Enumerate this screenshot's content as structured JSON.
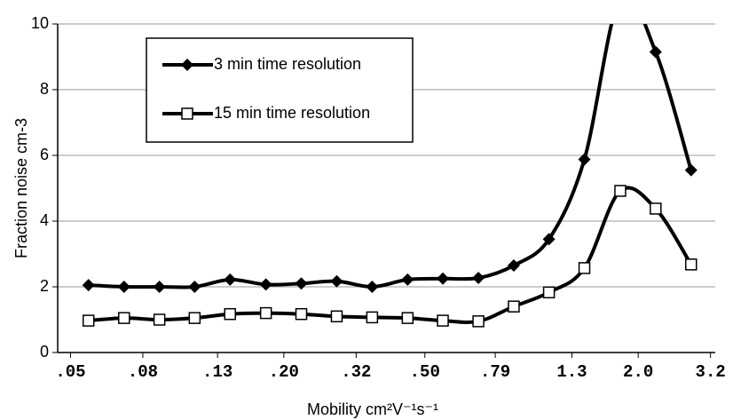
{
  "chart_data": {
    "type": "line",
    "x_label": "Mobility cm²V⁻¹s⁻¹",
    "y_label": "Fraction noise cm-3",
    "x": [
      0.0562,
      0.0708,
      0.0891,
      0.112,
      0.141,
      0.178,
      0.224,
      0.282,
      0.355,
      0.447,
      0.562,
      0.708,
      0.891,
      1.12,
      1.41,
      1.78,
      2.24,
      2.82
    ],
    "series": [
      {
        "name": "3 min time resolution",
        "color": "#000000",
        "marker": "diamond",
        "values": [
          2.05,
          2.0,
          2.0,
          2.0,
          2.22,
          2.07,
          2.1,
          2.17,
          2.0,
          2.22,
          2.25,
          2.27,
          2.65,
          3.45,
          5.88,
          10.8,
          9.15,
          5.55
        ]
      },
      {
        "name": "15 min time resolution",
        "color": "#000000",
        "marker": "square",
        "values": [
          0.97,
          1.05,
          1.0,
          1.05,
          1.17,
          1.2,
          1.17,
          1.1,
          1.07,
          1.05,
          0.97,
          0.95,
          1.4,
          1.83,
          2.57,
          4.92,
          4.38,
          2.68
        ]
      }
    ],
    "x_scale": "log",
    "xlim": [
      0.046,
      3.3
    ],
    "xticks": [
      {
        "value": 0.05,
        "label": ".05"
      },
      {
        "value": 0.08,
        "label": ".08"
      },
      {
        "value": 0.13,
        "label": ".13"
      },
      {
        "value": 0.2,
        "label": ".20"
      },
      {
        "value": 0.32,
        "label": ".32"
      },
      {
        "value": 0.5,
        "label": ".50"
      },
      {
        "value": 0.79,
        "label": ".79"
      },
      {
        "value": 1.3,
        "label": "1.3"
      },
      {
        "value": 2.0,
        "label": "2.0"
      },
      {
        "value": 3.2,
        "label": "3.2"
      }
    ],
    "ylim": [
      0,
      10
    ],
    "yticks": [
      0,
      2,
      4,
      6,
      8,
      10
    ],
    "grid": true,
    "legend": "upper left"
  }
}
